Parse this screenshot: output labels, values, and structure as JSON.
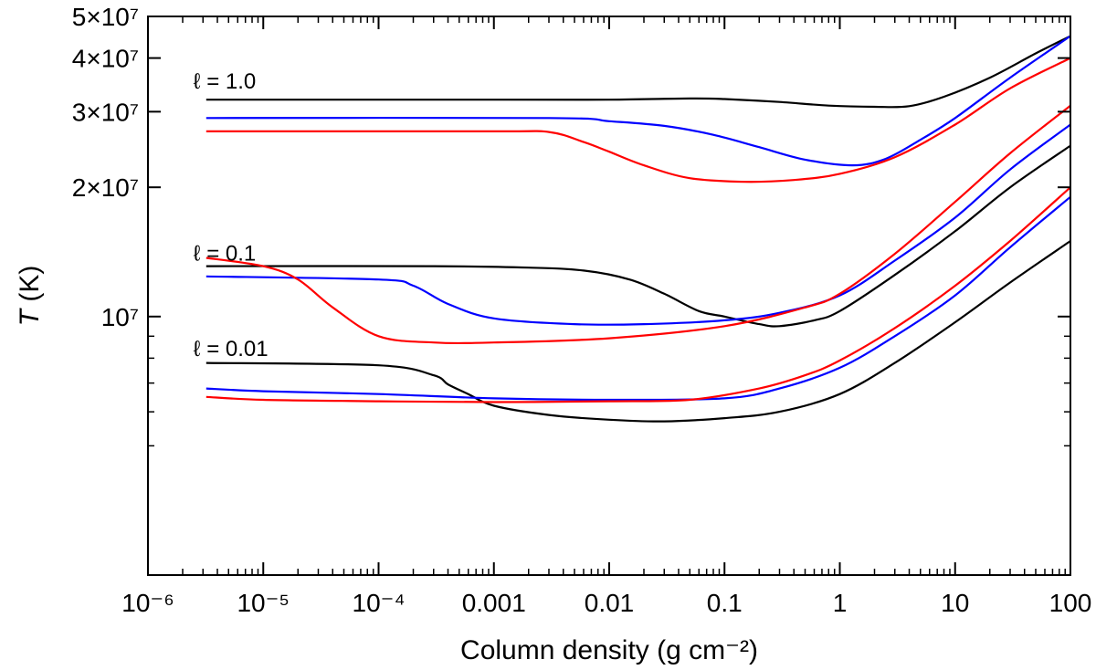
{
  "chart_data": {
    "type": "line",
    "title": "",
    "xlabel": "Column density (g cm⁻²)",
    "ylabel_italic": "T",
    "ylabel_unit": " (K)",
    "xscale": "log",
    "yscale": "log",
    "xlim": [
      1e-06,
      100
    ],
    "ylim": [
      2500000,
      50000000
    ],
    "grid": false,
    "x_ticks": [
      {
        "value": 1e-06,
        "label": "10⁻⁶"
      },
      {
        "value": 1e-05,
        "label": "10⁻⁵"
      },
      {
        "value": 0.0001,
        "label": "10⁻⁴"
      },
      {
        "value": 0.001,
        "label": "0.001"
      },
      {
        "value": 0.01,
        "label": "0.01"
      },
      {
        "value": 0.1,
        "label": "0.1"
      },
      {
        "value": 1,
        "label": "1"
      },
      {
        "value": 10,
        "label": "10"
      },
      {
        "value": 100,
        "label": "100"
      }
    ],
    "y_ticks": [
      {
        "value": 10000000,
        "label": "10⁷"
      },
      {
        "value": 20000000,
        "label": "2×10⁷"
      },
      {
        "value": 30000000,
        "label": "3×10⁷"
      },
      {
        "value": 40000000,
        "label": "4×10⁷"
      },
      {
        "value": 50000000,
        "label": "5×10⁷"
      }
    ],
    "y_minor_ticks": [
      5000000,
      6000000,
      7000000,
      8000000,
      9000000
    ],
    "annotations": [
      {
        "text": "ℓ = 1.0",
        "x": 3.2e-06,
        "y": 34000000
      },
      {
        "text": "ℓ = 0.1",
        "x": 3.2e-06,
        "y": 13500000
      },
      {
        "text": "ℓ = 0.01",
        "x": 3.2e-06,
        "y": 8100000
      }
    ],
    "series": [
      {
        "group": "l=1.0",
        "color": "#000000",
        "points": [
          [
            3.2e-06,
            32000000
          ],
          [
            0.001,
            32000000
          ],
          [
            0.01,
            32000000
          ],
          [
            0.05,
            32200000
          ],
          [
            0.1,
            32100000
          ],
          [
            0.3,
            31600000
          ],
          [
            0.8,
            31000000
          ],
          [
            2,
            30800000
          ],
          [
            4,
            30900000
          ],
          [
            8,
            32500000
          ],
          [
            20,
            36000000
          ],
          [
            50,
            41000000
          ],
          [
            100,
            45000000
          ]
        ]
      },
      {
        "group": "l=1.0",
        "color": "#0000ff",
        "points": [
          [
            3.2e-06,
            29000000
          ],
          [
            0.003,
            29000000
          ],
          [
            0.01,
            28500000
          ],
          [
            0.03,
            27800000
          ],
          [
            0.08,
            26500000
          ],
          [
            0.2,
            24800000
          ],
          [
            0.5,
            23200000
          ],
          [
            1.3,
            22500000
          ],
          [
            2.5,
            23300000
          ],
          [
            5,
            25800000
          ],
          [
            10,
            29000000
          ],
          [
            30,
            36000000
          ],
          [
            100,
            45000000
          ]
        ]
      },
      {
        "group": "l=1.0",
        "color": "#ff0000",
        "points": [
          [
            3.2e-06,
            27000000
          ],
          [
            0.001,
            27000000
          ],
          [
            0.003,
            26900000
          ],
          [
            0.006,
            25500000
          ],
          [
            0.01,
            24200000
          ],
          [
            0.02,
            22500000
          ],
          [
            0.05,
            21000000
          ],
          [
            0.15,
            20600000
          ],
          [
            0.4,
            20800000
          ],
          [
            1,
            21500000
          ],
          [
            3,
            23500000
          ],
          [
            10,
            28000000
          ],
          [
            30,
            34000000
          ],
          [
            100,
            40000000
          ]
        ]
      },
      {
        "group": "l=0.1",
        "color": "#000000",
        "points": [
          [
            3.2e-06,
            13100000
          ],
          [
            0.0003,
            13100000
          ],
          [
            0.002,
            13000000
          ],
          [
            0.006,
            12800000
          ],
          [
            0.015,
            12200000
          ],
          [
            0.03,
            11300000
          ],
          [
            0.06,
            10300000
          ],
          [
            0.1,
            10000000
          ],
          [
            0.2,
            9600000
          ],
          [
            0.3,
            9500000
          ],
          [
            0.6,
            9800000
          ],
          [
            1,
            10300000
          ],
          [
            3,
            12500000
          ],
          [
            10,
            15800000
          ],
          [
            30,
            20000000
          ],
          [
            100,
            25000000
          ]
        ]
      },
      {
        "group": "l=0.1",
        "color": "#0000ff",
        "points": [
          [
            3.2e-06,
            12400000
          ],
          [
            0.0001,
            12200000
          ],
          [
            0.0002,
            11800000
          ],
          [
            0.0004,
            10700000
          ],
          [
            0.001,
            9900000
          ],
          [
            0.005,
            9600000
          ],
          [
            0.02,
            9600000
          ],
          [
            0.1,
            9800000
          ],
          [
            0.3,
            10200000
          ],
          [
            1,
            11200000
          ],
          [
            3,
            13500000
          ],
          [
            10,
            17000000
          ],
          [
            30,
            22000000
          ],
          [
            100,
            28000000
          ]
        ]
      },
      {
        "group": "l=0.1",
        "color": "#ff0000",
        "points": [
          [
            3.2e-06,
            13700000
          ],
          [
            1e-05,
            13100000
          ],
          [
            2e-05,
            12200000
          ],
          [
            4e-05,
            10500000
          ],
          [
            0.0001,
            9000000
          ],
          [
            0.0003,
            8700000
          ],
          [
            0.001,
            8700000
          ],
          [
            0.01,
            8900000
          ],
          [
            0.1,
            9500000
          ],
          [
            0.5,
            10500000
          ],
          [
            1,
            11300000
          ],
          [
            3,
            14000000
          ],
          [
            10,
            18500000
          ],
          [
            30,
            24000000
          ],
          [
            100,
            31000000
          ]
        ]
      },
      {
        "group": "l=0.01",
        "color": "#000000",
        "points": [
          [
            3.2e-06,
            7800000
          ],
          [
            0.0001,
            7700000
          ],
          [
            0.0003,
            7300000
          ],
          [
            0.0004,
            6950000
          ],
          [
            0.0006,
            6600000
          ],
          [
            0.001,
            6200000
          ],
          [
            0.003,
            5900000
          ],
          [
            0.01,
            5750000
          ],
          [
            0.03,
            5700000
          ],
          [
            0.1,
            5800000
          ],
          [
            0.3,
            6000000
          ],
          [
            1,
            6600000
          ],
          [
            3,
            7800000
          ],
          [
            10,
            9700000
          ],
          [
            30,
            12000000
          ],
          [
            100,
            15000000
          ]
        ]
      },
      {
        "group": "l=0.01",
        "color": "#0000ff",
        "points": [
          [
            3.2e-06,
            6800000
          ],
          [
            1e-05,
            6700000
          ],
          [
            0.0001,
            6600000
          ],
          [
            0.001,
            6450000
          ],
          [
            0.01,
            6400000
          ],
          [
            0.1,
            6450000
          ],
          [
            0.3,
            6800000
          ],
          [
            1,
            7600000
          ],
          [
            3,
            9000000
          ],
          [
            10,
            11200000
          ],
          [
            30,
            14500000
          ],
          [
            100,
            19000000
          ]
        ]
      },
      {
        "group": "l=0.01",
        "color": "#ff0000",
        "points": [
          [
            3.2e-06,
            6500000
          ],
          [
            1e-05,
            6400000
          ],
          [
            0.0001,
            6350000
          ],
          [
            0.001,
            6320000
          ],
          [
            0.01,
            6350000
          ],
          [
            0.05,
            6400000
          ],
          [
            0.2,
            6800000
          ],
          [
            0.5,
            7300000
          ],
          [
            1,
            7900000
          ],
          [
            3,
            9400000
          ],
          [
            10,
            11800000
          ],
          [
            30,
            15000000
          ],
          [
            100,
            20000000
          ]
        ]
      }
    ]
  }
}
